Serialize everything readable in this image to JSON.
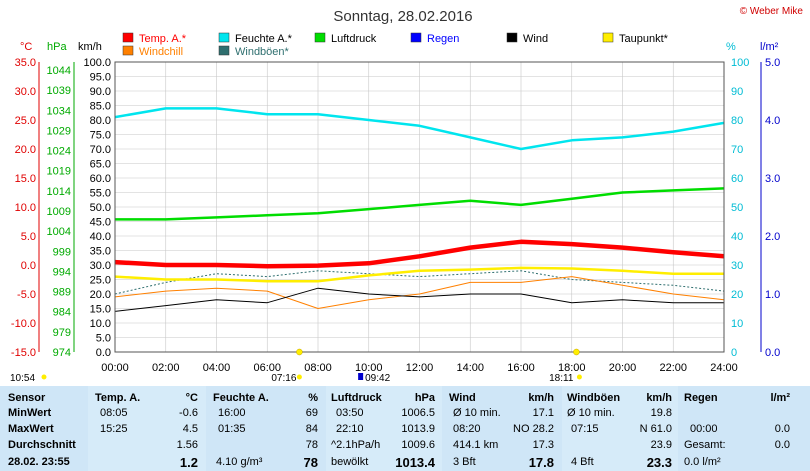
{
  "header": {
    "title": "Sonntag, 28.02.2016",
    "credit": "© Weber Mike"
  },
  "legend": [
    {
      "label": "Temp. A.*",
      "color": "#ff0000"
    },
    {
      "label": "Feuchte A.*",
      "color": "#00e5ee"
    },
    {
      "label": "Luftdruck",
      "color": "#00dd00"
    },
    {
      "label": "Regen",
      "color": "#0000ff"
    },
    {
      "label": "Wind",
      "color": "#000000"
    },
    {
      "label": "Taupunkt*",
      "color": "#ffee00"
    },
    {
      "label": "Windchill",
      "color": "#ff8000"
    },
    {
      "label": "Windböen*",
      "color": "#2f6f6f"
    }
  ],
  "axes": {
    "temp_unit": "°C",
    "press_unit": "hPa",
    "wind_unit": "km/h",
    "hum_unit": "%",
    "rain_unit": "l/m²",
    "temp_ticks": [
      "35.0",
      "30.0",
      "25.0",
      "20.0",
      "15.0",
      "10.0",
      "5.0",
      "0.0",
      "-5.0",
      "-10.0",
      "-15.0"
    ],
    "press_ticks": [
      "1044",
      "1039",
      "1034",
      "1029",
      "1024",
      "1019",
      "1014",
      "1009",
      "1004",
      "999",
      "994",
      "989",
      "984",
      "979",
      "974"
    ],
    "wind_ticks": [
      "100.0",
      "95.0",
      "90.0",
      "85.0",
      "80.0",
      "75.0",
      "70.0",
      "65.0",
      "60.0",
      "55.0",
      "50.0",
      "45.0",
      "40.0",
      "35.0",
      "30.0",
      "25.0",
      "20.0",
      "15.0",
      "10.0",
      "5.0",
      "0.0"
    ],
    "hum_ticks": [
      "100",
      "90",
      "80",
      "70",
      "60",
      "50",
      "40",
      "30",
      "20",
      "10",
      "0"
    ],
    "rain_ticks": [
      "5.0",
      "4.0",
      "3.0",
      "2.0",
      "1.0",
      "0.0"
    ],
    "time_ticks": [
      "00:00",
      "02:00",
      "04:00",
      "06:00",
      "08:00",
      "10:00",
      "12:00",
      "14:00",
      "16:00",
      "18:00",
      "20:00",
      "22:00",
      "24:00"
    ]
  },
  "sun_moon": {
    "sunrise": "07:16",
    "sunset": "18:11",
    "moonrise": "10:54",
    "moonset": "09:42"
  },
  "chart_data": {
    "type": "line",
    "title": "Sonntag, 28.02.2016",
    "x": [
      "00:00",
      "02:00",
      "04:00",
      "06:00",
      "08:00",
      "10:00",
      "12:00",
      "14:00",
      "16:00",
      "18:00",
      "20:00",
      "22:00",
      "24:00"
    ],
    "xlim": [
      "00:00",
      "24:00"
    ],
    "series": [
      {
        "name": "Temp. A.*",
        "axis": "°C",
        "color": "#ff0000",
        "values": [
          0.5,
          0.0,
          0.0,
          -0.2,
          -0.1,
          0.3,
          1.5,
          3.0,
          4.0,
          3.6,
          3.0,
          2.2,
          1.5
        ]
      },
      {
        "name": "Feuchte A.*",
        "axis": "%",
        "color": "#00e5ee",
        "values": [
          81,
          84,
          84,
          82,
          82,
          80,
          78,
          74,
          70,
          73,
          74,
          76,
          79
        ]
      },
      {
        "name": "Luftdruck",
        "axis": "hPa",
        "color": "#00dd00",
        "values": [
          1006.0,
          1006.0,
          1006.5,
          1007.0,
          1007.5,
          1008.5,
          1009.5,
          1010.5,
          1009.5,
          1011.0,
          1012.5,
          1013.0,
          1013.5
        ]
      },
      {
        "name": "Taupunkt*",
        "axis": "°C",
        "color": "#ffee00",
        "values": [
          -2.0,
          -2.5,
          -2.5,
          -2.8,
          -2.8,
          -1.8,
          -1.0,
          -0.8,
          -0.5,
          -0.6,
          -1.0,
          -1.5,
          -1.5
        ]
      },
      {
        "name": "Windchill",
        "axis": "°C",
        "color": "#ff8000",
        "values": [
          -5.5,
          -4.5,
          -4.0,
          -4.5,
          -7.5,
          -6.0,
          -5.0,
          -3.0,
          -3.0,
          -2.0,
          -3.5,
          -5.0,
          -6.0
        ]
      },
      {
        "name": "Wind",
        "axis": "km/h",
        "color": "#000000",
        "values": [
          14,
          16,
          18,
          17,
          22,
          20,
          19,
          20,
          20,
          17,
          18,
          17,
          17
        ]
      },
      {
        "name": "Windböen*",
        "axis": "km/h",
        "color": "#2f6f6f",
        "values": [
          20,
          24,
          27,
          26,
          28,
          27,
          26,
          27,
          28,
          25,
          24,
          23,
          21
        ]
      }
    ],
    "ylim_temp": [
      -15,
      35
    ],
    "ylim_press": [
      974,
      1044
    ],
    "ylim_wind": [
      0,
      100
    ],
    "ylim_hum": [
      0,
      100
    ],
    "ylim_rain": [
      0,
      5
    ],
    "grid": true
  },
  "table": {
    "sensor": {
      "h": "Sensor",
      "min": "MinWert",
      "max": "MaxWert",
      "avg": "Durchschnitt",
      "now": "28.02. 23:55"
    },
    "temp": {
      "h": "Temp. A.",
      "u": "°C",
      "min_t": "08:05",
      "min_v": "-0.6",
      "max_t": "15:25",
      "max_v": "4.5",
      "avg_v": "1.56",
      "now_v": "1.2"
    },
    "hum": {
      "h": "Feuchte A.",
      "u": "%",
      "min_t": "16:00",
      "min_v": "69",
      "max_t": "01:35",
      "max_v": "84",
      "avg_v": "78",
      "now_l": "4.10 g/m³",
      "now_v": "78"
    },
    "press": {
      "h": "Luftdruck",
      "u": "hPa",
      "min_t": "03:50",
      "min_v": "1006.5",
      "max_t": "22:10",
      "max_v": "1013.9",
      "avg_l": "^2.1hPa/h",
      "avg_v": "1009.6",
      "now_l": "bewölkt",
      "now_v": "1013.4"
    },
    "wind": {
      "h": "Wind",
      "u": "km/h",
      "min_l": "Ø 10 min.",
      "min_v": "17.1",
      "max_t": "08:20",
      "max_d": "NO 28.2",
      "avg_l": "414.1 km",
      "avg_v": "17.3",
      "now_l": "3 Bft",
      "now_v": "17.8"
    },
    "gust": {
      "h": "Windböen",
      "u": "km/h",
      "min_l": "Ø 10 min.",
      "min_v": "19.8",
      "max_t": "07:15",
      "max_d": "N 61.0",
      "avg_v": "23.9",
      "now_l": "4 Bft",
      "now_v": "23.3"
    },
    "rain": {
      "h": "Regen",
      "u": "l/m²",
      "max_t": "00:00",
      "max_v": "0.0",
      "avg_l": "Gesamt:",
      "avg_v": "0.0",
      "now_v": "0.0 l/m²"
    }
  }
}
